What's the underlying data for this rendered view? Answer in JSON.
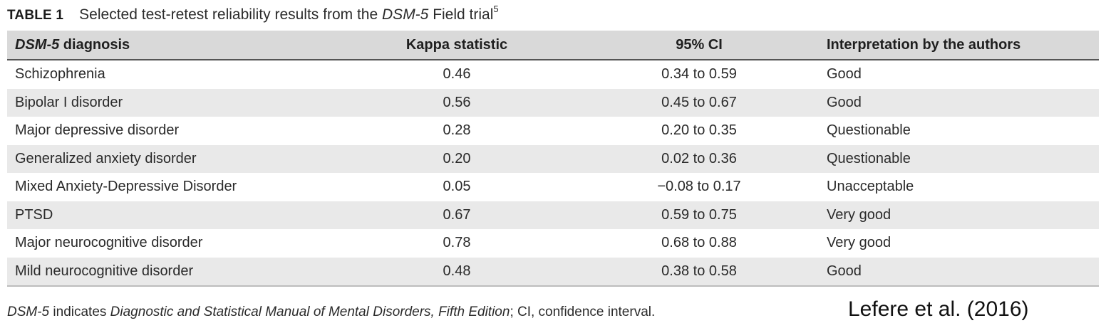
{
  "caption": {
    "label": "TABLE 1",
    "text_before": "Selected test-retest reliability results from the ",
    "text_italic": "DSM-5",
    "text_after": " Field trial",
    "ref": "5"
  },
  "table": {
    "headers": {
      "diagnosis_italic": "DSM-5",
      "diagnosis_rest": " diagnosis",
      "kappa": "Kappa statistic",
      "ci": "95% CI",
      "interpretation": "Interpretation by the authors"
    },
    "rows": [
      {
        "diagnosis": "Schizophrenia",
        "kappa": "0.46",
        "ci": "0.34 to 0.59",
        "interpretation": "Good"
      },
      {
        "diagnosis": "Bipolar I disorder",
        "kappa": "0.56",
        "ci": "0.45 to 0.67",
        "interpretation": "Good"
      },
      {
        "diagnosis": "Major depressive disorder",
        "kappa": "0.28",
        "ci": "0.20 to 0.35",
        "interpretation": "Questionable"
      },
      {
        "diagnosis": "Generalized anxiety disorder",
        "kappa": "0.20",
        "ci": "0.02 to 0.36",
        "interpretation": "Questionable"
      },
      {
        "diagnosis": "Mixed Anxiety-Depressive Disorder",
        "kappa": "0.05",
        "ci": "−0.08 to 0.17",
        "interpretation": "Unacceptable"
      },
      {
        "diagnosis": "PTSD",
        "kappa": "0.67",
        "ci": "0.59 to 0.75",
        "interpretation": "Very good"
      },
      {
        "diagnosis": "Major neurocognitive disorder",
        "kappa": "0.78",
        "ci": "0.68 to 0.88",
        "interpretation": "Very good"
      },
      {
        "diagnosis": "Mild neurocognitive disorder",
        "kappa": "0.48",
        "ci": "0.38 to 0.58",
        "interpretation": "Good"
      }
    ]
  },
  "footnote": {
    "abbr_italic": "DSM-5",
    "indicates": " indicates ",
    "full_italic": "Diagnostic and Statistical Manual of Mental Disorders, Fifth Edition",
    "rest": "; CI, confidence interval."
  },
  "credit": "Lefere et al. (2016)"
}
